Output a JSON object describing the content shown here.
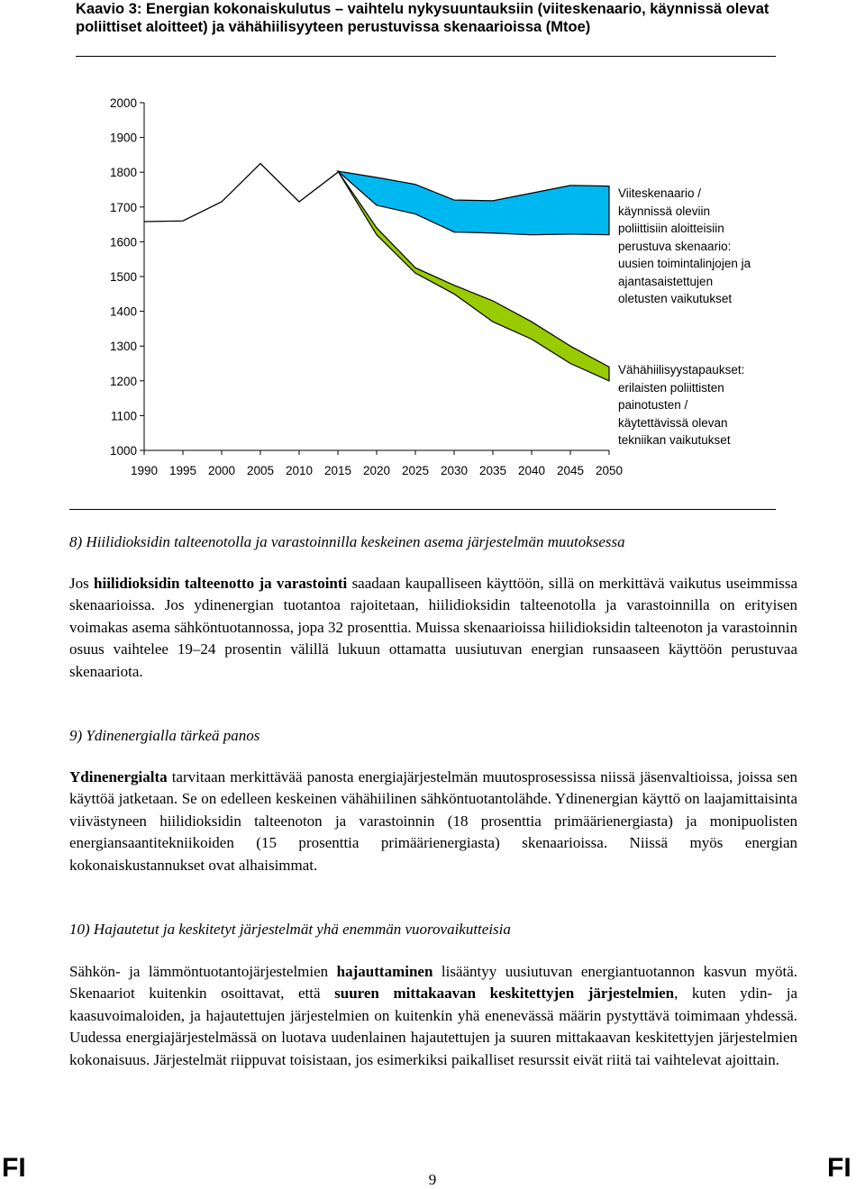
{
  "caption": {
    "prefix": "Kaavio 3: ",
    "text": "Energian kokonaiskulutus – vaihtelu nykysuuntauksiin (viiteskenaario, käynnissä olevat poliittiset aloitteet) ja vähähiilisyyteen perustuvissa skenaarioissa (Mtoe)"
  },
  "chart_data": {
    "type": "area",
    "x": [
      1990,
      1995,
      2000,
      2005,
      2010,
      2015,
      2020,
      2025,
      2030,
      2035,
      2040,
      2045,
      2050
    ],
    "xlim": [
      1990,
      2050
    ],
    "ylim": [
      1000,
      2000
    ],
    "x_ticks": [
      "1990",
      "1995",
      "2000",
      "2005",
      "2010",
      "2015",
      "2020",
      "2025",
      "2030",
      "2035",
      "2040",
      "2045",
      "2050"
    ],
    "y_ticks": [
      "1000",
      "1100",
      "1200",
      "1300",
      "1400",
      "1500",
      "1600",
      "1700",
      "1800",
      "1900",
      "2000"
    ],
    "historical": {
      "x": [
        1990,
        1995,
        2000,
        2005,
        2010,
        2015
      ],
      "values": [
        1658,
        1660,
        1715,
        1825,
        1715,
        1800
      ]
    },
    "bands": [
      {
        "color": "#00b8f0",
        "upper": {
          "x": [
            2015,
            2020,
            2025,
            2030,
            2035,
            2040,
            2045,
            2050
          ],
          "values": [
            1803,
            1785,
            1765,
            1720,
            1718,
            1740,
            1762,
            1760
          ]
        },
        "lower": {
          "x": [
            2015,
            2020,
            2025,
            2030,
            2035,
            2040,
            2045,
            2050
          ],
          "values": [
            1803,
            1705,
            1680,
            1628,
            1625,
            1620,
            1622,
            1620
          ]
        }
      },
      {
        "color": "#99cc00",
        "upper": {
          "x": [
            2015,
            2020,
            2025,
            2030,
            2035,
            2040,
            2045,
            2050
          ],
          "values": [
            1803,
            1640,
            1525,
            1475,
            1430,
            1370,
            1300,
            1240
          ]
        },
        "lower": {
          "x": [
            2015,
            2020,
            2025,
            2030,
            2035,
            2040,
            2045,
            2050
          ],
          "values": [
            1803,
            1620,
            1510,
            1450,
            1370,
            1320,
            1250,
            1200
          ]
        }
      }
    ],
    "annotations": [
      "Viiteskenaario / käynnissä oleviin poliittisiin aloitteisiin perustuva skenaario: uusien toimintalinjojen ja ajantasaistettujen oletusten vaikutukset",
      "Vähähiilisyystapaukset: erilaisten poliittisten painotusten / käytettävissä olevan tekniikan vaikutukset"
    ],
    "colors": {
      "reference_band": "#00b8f0",
      "low_carbon_band": "#99cc00"
    }
  },
  "legend": {
    "reference": [
      "Viiteskenaario /",
      "käynnissä oleviin",
      "poliittisiin aloitteisiin",
      "perustuva skenaario:",
      "uusien toimintalinjojen ja",
      "ajantasaistettujen",
      "oletusten vaikutukset"
    ],
    "low_carbon": [
      "Vähähiilisyystapaukset:",
      "erilaisten poliittisten",
      "painotusten /",
      "käytettävissä olevan",
      "tekniikan vaikutukset"
    ]
  },
  "section8": {
    "heading": "8) Hiilidioksidin talteenotolla ja varastoinnilla keskeinen asema järjestelmän muutoksessa",
    "p1_a": "Jos ",
    "p1_b": "hiilidioksidin talteenotto ja varastointi",
    "p1_c": " saadaan kaupalliseen käyttöön, sillä on merkittävä vaikutus useimmissa skenaarioissa. Jos ydinenergian tuotantoa rajoitetaan, hiilidioksidin talteenotolla ja varastoinnilla on erityisen voimakas asema sähköntuotannossa, jopa 32 prosenttia. Muissa skenaarioissa hiilidioksidin talteenoton ja varastoinnin osuus vaihtelee 19–24 prosentin välillä lukuun ottamatta uusiutuvan energian runsaaseen käyttöön perustuvaa skenaariota."
  },
  "section9": {
    "heading": "9) Ydinenergialla tärkeä panos",
    "p1_a": "Ydinenergialta",
    "p1_b": " tarvitaan merkittävää panosta energiajärjestelmän muutosprosessissa niissä jäsenvaltioissa, joissa sen käyttöä jatketaan. Se on edelleen keskeinen vähähiilinen sähköntuotantolähde. Ydinenergian käyttö on laajamittaisinta viivästyneen hiilidioksidin talteenoton ja varastoinnin (18 prosenttia primäärienergiasta) ja monipuolisten energiansaantitekniikoiden (15 prosenttia primäärienergiasta) skenaarioissa. Niissä myös energian kokonaiskustannukset ovat alhaisimmat."
  },
  "section10": {
    "heading": "10) Hajautetut ja keskitetyt järjestelmät yhä enemmän vuorovaikutteisia",
    "p1_a": "Sähkön- ja lämmöntuotantojärjestelmien ",
    "p1_b": "hajauttaminen",
    "p1_c": " lisääntyy uusiutuvan energiantuotannon kasvun myötä. Skenaariot kuitenkin osoittavat, että ",
    "p1_d": "suuren mittakaavan keskitettyjen järjestelmien",
    "p1_e": ", kuten ydin- ja kaasuvoimaloiden, ja hajautettujen järjestelmien on kuitenkin yhä enenevässä määrin pystyttävä toimimaan yhdessä. Uudessa energiajärjestelmässä on luotava uudenlainen hajautettujen ja suuren mittakaavan keskitettyjen järjestelmien kokonaisuus. Järjestelmät riippuvat toisistaan, jos esimerkiksi paikalliset resurssit eivät riitä tai vaihtelevat ajoittain."
  },
  "footer": {
    "left": "FI",
    "page": "9",
    "right": "FI"
  }
}
